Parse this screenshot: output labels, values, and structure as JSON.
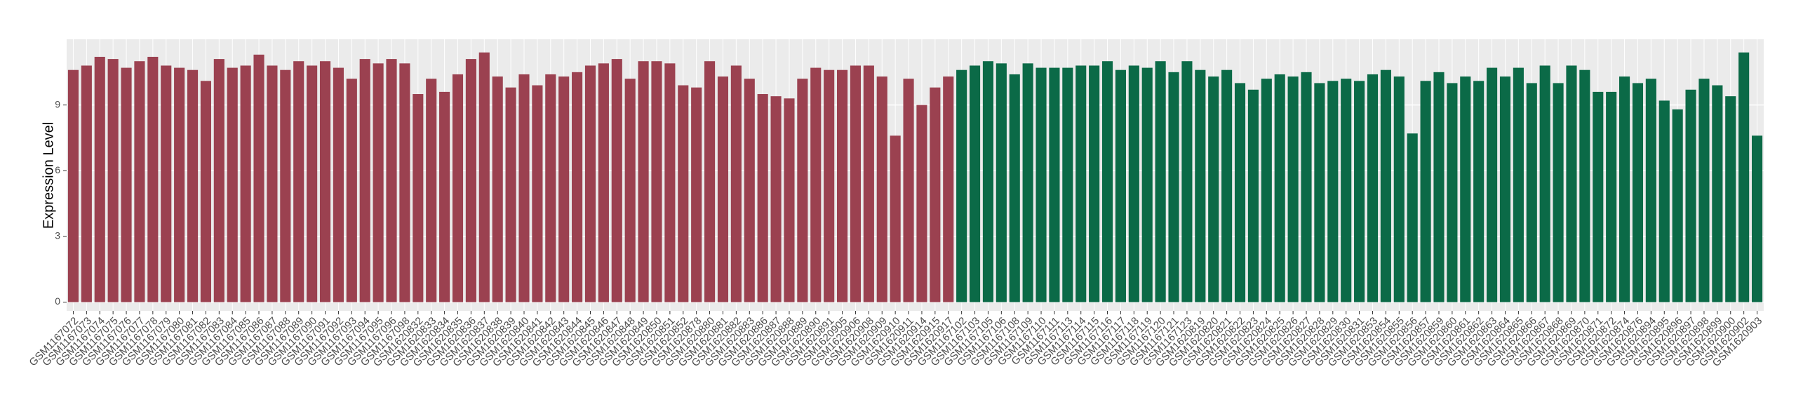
{
  "chart_data": {
    "type": "bar",
    "y_label": "Expression Level",
    "ylim": [
      -0.4,
      12
    ],
    "yticks": [
      0,
      3,
      6,
      9
    ],
    "grid": true,
    "categories": [
      "GSM1167072",
      "GSM1167073",
      "GSM1167074",
      "GSM1167075",
      "GSM1167076",
      "GSM1167077",
      "GSM1167078",
      "GSM1167079",
      "GSM1167080",
      "GSM1167081",
      "GSM1167082",
      "GSM1167083",
      "GSM1167084",
      "GSM1167085",
      "GSM1167086",
      "GSM1167087",
      "GSM1167088",
      "GSM1167089",
      "GSM1167090",
      "GSM1167091",
      "GSM1167092",
      "GSM1167093",
      "GSM1167094",
      "GSM1167095",
      "GSM1167096",
      "GSM1167098",
      "GSM1620832",
      "GSM1620833",
      "GSM1620834",
      "GSM1620835",
      "GSM1620836",
      "GSM1620837",
      "GSM1620838",
      "GSM1620839",
      "GSM1620840",
      "GSM1620841",
      "GSM1620842",
      "GSM1620843",
      "GSM1620844",
      "GSM1620845",
      "GSM1620846",
      "GSM1620847",
      "GSM1620848",
      "GSM1620849",
      "GSM1620850",
      "GSM1620851",
      "GSM1620852",
      "GSM1620878",
      "GSM1620880",
      "GSM1620881",
      "GSM1620882",
      "GSM1620883",
      "GSM1620886",
      "GSM1620887",
      "GSM1620888",
      "GSM1620889",
      "GSM1620890",
      "GSM1620891",
      "GSM1620905",
      "GSM1620906",
      "GSM1620908",
      "GSM1620909",
      "GSM1620910",
      "GSM1620911",
      "GSM1620914",
      "GSM1620915",
      "GSM1620917",
      "GSM1167102",
      "GSM1167103",
      "GSM1167105",
      "GSM1167106",
      "GSM1167108",
      "GSM1167109",
      "GSM1167110",
      "GSM1167111",
      "GSM1167113",
      "GSM1167114",
      "GSM1167115",
      "GSM1167116",
      "GSM1167117",
      "GSM1167118",
      "GSM1167119",
      "GSM1167120",
      "GSM1167121",
      "GSM1167123",
      "GSM1620819",
      "GSM1620820",
      "GSM1620821",
      "GSM1620822",
      "GSM1620823",
      "GSM1620824",
      "GSM1620825",
      "GSM1620826",
      "GSM1620827",
      "GSM1620828",
      "GSM1620829",
      "GSM1620830",
      "GSM1620831",
      "GSM1620853",
      "GSM1620854",
      "GSM1620855",
      "GSM1620856",
      "GSM1620857",
      "GSM1620859",
      "GSM1620860",
      "GSM1620861",
      "GSM1620862",
      "GSM1620863",
      "GSM1620864",
      "GSM1620865",
      "GSM1620866",
      "GSM1620867",
      "GSM1620868",
      "GSM1620869",
      "GSM1620870",
      "GSM1620871",
      "GSM1620872",
      "GSM1620874",
      "GSM1620876",
      "GSM1620894",
      "GSM1620895",
      "GSM1620896",
      "GSM1620897",
      "GSM1620898",
      "GSM1620899",
      "GSM1620900",
      "GSM1620902",
      "GSM1620903"
    ],
    "series": [
      {
        "color": "#9b4150",
        "values": [
          10.6,
          10.8,
          11.2,
          11.1,
          10.7,
          11.0,
          11.2,
          10.8,
          10.7,
          10.6,
          10.1,
          11.1,
          10.7,
          10.8,
          11.3,
          10.8,
          10.6,
          11.0,
          10.8,
          11.0,
          10.7,
          10.2,
          11.1,
          10.9,
          11.1,
          10.9,
          9.5,
          10.2,
          9.6,
          10.4,
          11.1,
          11.4,
          10.3,
          9.8,
          10.4,
          9.9,
          10.4,
          10.3,
          10.5,
          10.8,
          10.9,
          11.1,
          10.2,
          11.0,
          11.0,
          10.9,
          9.9,
          9.8,
          11.0,
          10.3,
          10.8,
          10.2,
          9.5,
          9.4,
          9.3,
          10.2,
          10.7,
          10.6,
          10.6,
          10.8,
          10.8,
          10.3,
          7.6,
          10.2,
          9.0,
          9.8,
          10.3,
          null,
          null,
          null,
          null,
          null,
          null,
          null,
          null,
          null,
          null,
          null,
          null,
          null,
          null,
          null,
          null,
          null,
          null,
          null,
          null,
          null,
          null,
          null,
          null,
          null,
          null,
          null,
          null,
          null,
          null,
          null,
          null,
          null,
          null,
          null,
          null,
          null,
          null,
          null,
          null,
          null,
          null,
          null,
          null,
          null,
          null,
          null,
          null,
          null,
          null,
          null,
          null,
          null,
          null,
          null,
          null,
          null,
          null,
          null,
          null,
          null
        ]
      },
      {
        "color": "#0b6a47",
        "values": [
          null,
          null,
          null,
          null,
          null,
          null,
          null,
          null,
          null,
          null,
          null,
          null,
          null,
          null,
          null,
          null,
          null,
          null,
          null,
          null,
          null,
          null,
          null,
          null,
          null,
          null,
          null,
          null,
          null,
          null,
          null,
          null,
          null,
          null,
          null,
          null,
          null,
          null,
          null,
          null,
          null,
          null,
          null,
          null,
          null,
          null,
          null,
          null,
          null,
          null,
          null,
          null,
          null,
          null,
          null,
          null,
          null,
          null,
          null,
          null,
          null,
          null,
          null,
          null,
          null,
          null,
          null,
          10.6,
          10.8,
          11.0,
          10.9,
          10.4,
          10.9,
          10.7,
          10.7,
          10.7,
          10.8,
          10.8,
          11.0,
          10.6,
          10.8,
          10.7,
          11.0,
          10.5,
          11.0,
          10.6,
          10.3,
          10.6,
          10.0,
          9.7,
          10.2,
          10.4,
          10.3,
          10.5,
          10.0,
          10.1,
          10.2,
          10.1,
          10.4,
          10.6,
          10.3,
          7.7,
          10.1,
          10.5,
          10.0,
          10.3,
          10.1,
          10.7,
          10.3,
          10.7,
          10.0,
          10.8,
          10.0,
          10.8,
          10.6,
          9.6,
          9.6,
          10.3,
          10.0,
          10.2,
          9.2,
          8.8,
          9.7,
          10.2,
          9.9,
          9.4,
          11.4,
          7.6
        ]
      }
    ]
  }
}
